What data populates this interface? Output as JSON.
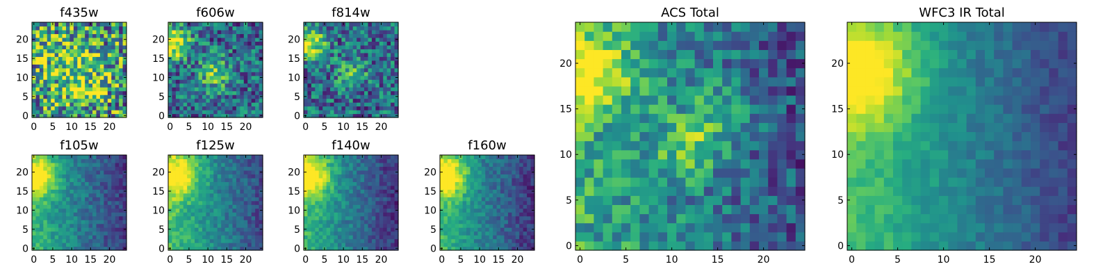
{
  "chart_data": [
    {
      "type": "heatmap",
      "title": "f435w",
      "xticks": [
        "0",
        "5",
        "10",
        "15",
        "20"
      ],
      "yticks": [
        "0",
        "5",
        "10",
        "15",
        "20"
      ],
      "xlim": [
        -0.5,
        24.5
      ],
      "ylim": [
        -0.5,
        24.5
      ],
      "grid": false,
      "hotspots": [
        {
          "x": 12,
          "y": 11,
          "value": 0.85,
          "sigma": 6
        },
        {
          "x": 3,
          "y": 19,
          "value": 0.6,
          "sigma": 5
        }
      ],
      "noise": 0.45,
      "base": 0.5
    },
    {
      "type": "heatmap",
      "title": "f606w",
      "xticks": [
        "0",
        "5",
        "10",
        "15",
        "20"
      ],
      "yticks": [
        "0",
        "5",
        "10",
        "15",
        "20"
      ],
      "xlim": [
        -0.5,
        24.5
      ],
      "ylim": [
        -0.5,
        24.5
      ],
      "grid": false,
      "hotspots": [
        {
          "x": 1,
          "y": 19,
          "value": 1.0,
          "sigma": 3
        },
        {
          "x": 12,
          "y": 11,
          "value": 0.75,
          "sigma": 3
        }
      ],
      "noise": 0.3,
      "base": 0.35
    },
    {
      "type": "heatmap",
      "title": "f814w",
      "xticks": [
        "0",
        "5",
        "10",
        "15",
        "20"
      ],
      "yticks": [
        "0",
        "5",
        "10",
        "15",
        "20"
      ],
      "xlim": [
        -0.5,
        24.5
      ],
      "ylim": [
        -0.5,
        24.5
      ],
      "grid": false,
      "hotspots": [
        {
          "x": 1,
          "y": 19,
          "value": 1.0,
          "sigma": 3
        },
        {
          "x": 12,
          "y": 11,
          "value": 0.65,
          "sigma": 3
        }
      ],
      "noise": 0.3,
      "base": 0.35
    },
    {
      "type": "heatmap",
      "title": "f105w",
      "xticks": [
        "0",
        "5",
        "10",
        "15",
        "20"
      ],
      "yticks": [
        "0",
        "5",
        "10",
        "15",
        "20"
      ],
      "xlim": [
        -0.5,
        24.5
      ],
      "ylim": [
        -0.5,
        24.5
      ],
      "grid": false,
      "hotspots": [
        {
          "x": 1,
          "y": 19,
          "value": 1.0,
          "sigma": 3.5
        }
      ],
      "noise": 0.12,
      "base": 0.5,
      "gradient": -0.02
    },
    {
      "type": "heatmap",
      "title": "f125w",
      "xticks": [
        "0",
        "5",
        "10",
        "15",
        "20"
      ],
      "yticks": [
        "0",
        "5",
        "10",
        "15",
        "20"
      ],
      "xlim": [
        -0.5,
        24.5
      ],
      "ylim": [
        -0.5,
        24.5
      ],
      "grid": false,
      "hotspots": [
        {
          "x": 2,
          "y": 19,
          "value": 1.0,
          "sigma": 4
        }
      ],
      "noise": 0.12,
      "base": 0.55,
      "gradient": -0.02
    },
    {
      "type": "heatmap",
      "title": "f140w",
      "xticks": [
        "0",
        "5",
        "10",
        "15",
        "20"
      ],
      "yticks": [
        "0",
        "5",
        "10",
        "15",
        "20"
      ],
      "xlim": [
        -0.5,
        24.5
      ],
      "ylim": [
        -0.5,
        24.5
      ],
      "grid": false,
      "hotspots": [
        {
          "x": 1,
          "y": 19,
          "value": 1.0,
          "sigma": 4
        }
      ],
      "noise": 0.12,
      "base": 0.5,
      "gradient": -0.022
    },
    {
      "type": "heatmap",
      "title": "f160w",
      "xticks": [
        "0",
        "5",
        "10",
        "15",
        "20"
      ],
      "yticks": [
        "0",
        "5",
        "10",
        "15",
        "20"
      ],
      "xlim": [
        -0.5,
        24.5
      ],
      "ylim": [
        -0.5,
        24.5
      ],
      "grid": false,
      "hotspots": [
        {
          "x": 1,
          "y": 19,
          "value": 1.0,
          "sigma": 4
        }
      ],
      "noise": 0.12,
      "base": 0.5,
      "gradient": -0.022
    },
    {
      "type": "heatmap",
      "title": "ACS Total",
      "xticks": [
        "0",
        "5",
        "10",
        "15",
        "20"
      ],
      "yticks": [
        "0",
        "5",
        "10",
        "15",
        "20"
      ],
      "xlim": [
        -0.5,
        24.5
      ],
      "ylim": [
        -0.5,
        24.5
      ],
      "grid": false,
      "hotspots": [
        {
          "x": 1,
          "y": 19,
          "value": 1.0,
          "sigma": 3
        },
        {
          "x": 12,
          "y": 11,
          "value": 0.8,
          "sigma": 2.5
        },
        {
          "x": 15,
          "y": 15,
          "value": 0.7,
          "sigma": 2.5
        }
      ],
      "noise": 0.22,
      "base": 0.5,
      "gradient": -0.015
    },
    {
      "type": "heatmap",
      "title": "WFC3 IR Total",
      "xticks": [
        "0",
        "5",
        "10",
        "15",
        "20"
      ],
      "yticks": [
        "0",
        "5",
        "10",
        "15",
        "20"
      ],
      "xlim": [
        -0.5,
        24.5
      ],
      "ylim": [
        -0.5,
        24.5
      ],
      "grid": false,
      "hotspots": [
        {
          "x": 1,
          "y": 19,
          "value": 1.0,
          "sigma": 4
        }
      ],
      "noise": 0.08,
      "base": 0.55,
      "gradient": -0.022
    }
  ]
}
